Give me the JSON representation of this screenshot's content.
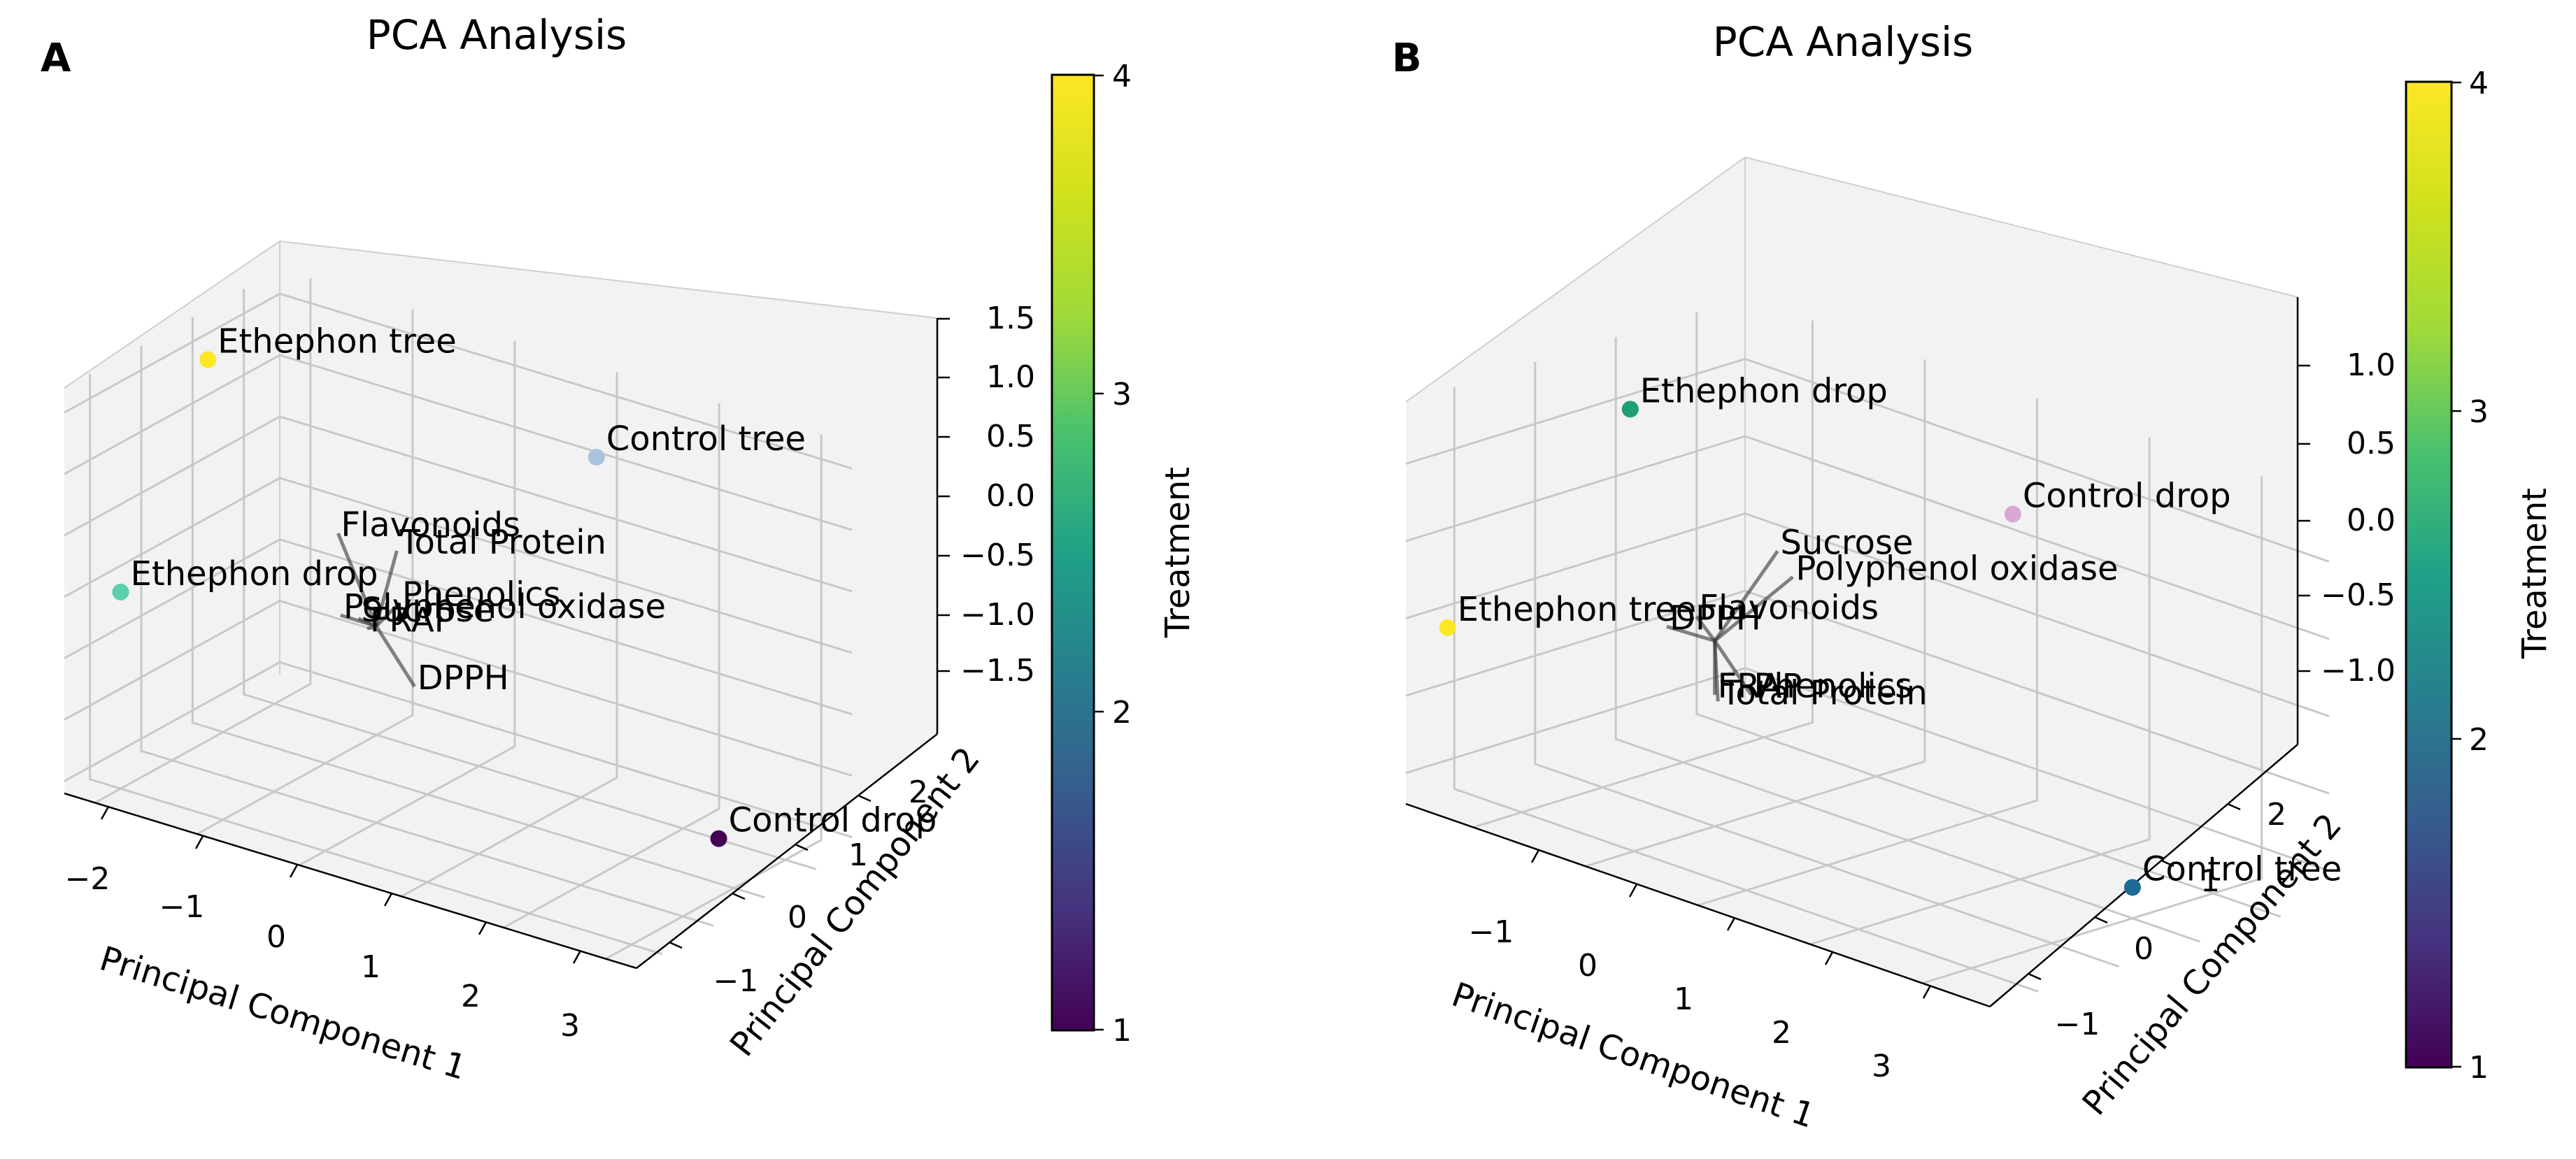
{
  "figure": {
    "panels": [
      {
        "panel_label": "A",
        "title": "PCA Analysis",
        "xlabel": "Principal Component 1",
        "ylabel": "Principal Component 2",
        "xticks": [
          "−2",
          "−1",
          "0",
          "1",
          "2",
          "3"
        ],
        "yticks": [
          "−1",
          "0",
          "1",
          "2"
        ],
        "zticks": [
          "1.5",
          "1.0",
          "0.5",
          "0.0",
          "−0.5",
          "−1.0",
          "−1.5"
        ],
        "colorbar": {
          "label": "Treatment",
          "ticks": [
            "4",
            "3",
            "2",
            "1"
          ],
          "colormap": "viridis"
        }
      },
      {
        "panel_label": "B",
        "title": "PCA Analysis",
        "xlabel": "Principal Component 1",
        "ylabel": "Principal Component 2",
        "xticks": [
          "−1",
          "0",
          "1",
          "2",
          "3"
        ],
        "yticks": [
          "−1",
          "0",
          "1",
          "2"
        ],
        "zticks": [
          "1.0",
          "0.5",
          "0.0",
          "−0.5",
          "−1.0"
        ],
        "colorbar": {
          "label": "Treatment",
          "ticks": [
            "4",
            "3",
            "2",
            "1"
          ],
          "colormap": "viridis"
        }
      }
    ]
  },
  "chart_data": [
    {
      "type": "scatter",
      "projection": "3d",
      "title": "PCA Analysis",
      "xlabel": "Principal Component 1",
      "ylabel": "Principal Component 2",
      "xlim": [
        -2.3,
        3.3
      ],
      "ylim": [
        -1.5,
        2.7
      ],
      "zlim": [
        -1.6,
        1.7
      ],
      "color_range": [
        1,
        4
      ],
      "grid": true,
      "points": [
        {
          "label": "Control tree",
          "x": 1.0,
          "y": 2.3,
          "z": 1.1,
          "treatment": 2,
          "color": "#a9c3dd"
        },
        {
          "label": "Ethephon tree",
          "x": -2.0,
          "y": 0.7,
          "z": 1.5,
          "treatment": 4,
          "color": "#fde725"
        },
        {
          "label": "Ethephon drop",
          "x": -2.0,
          "y": -1.0,
          "z": 0.0,
          "treatment": 3,
          "color": "#5ad0ad"
        },
        {
          "label": "Control drop",
          "x": 2.9,
          "y": 0.9,
          "z": -1.2,
          "treatment": 1,
          "color": "#440154"
        }
      ],
      "loadings": [
        {
          "label": "Flavonoids",
          "x": -0.6,
          "y": 0.45,
          "z": 0.5
        },
        {
          "label": "Total Protein",
          "x": -0.1,
          "y": 0.6,
          "z": 0.45
        },
        {
          "label": "Phenolics",
          "x": 0.05,
          "y": 0.35,
          "z": 0.12
        },
        {
          "label": "Polyphenol oxidase",
          "x": -0.35,
          "y": 0.0,
          "z": 0.0
        },
        {
          "label": "Sucrose",
          "x": -0.2,
          "y": 0.05,
          "z": 0.0
        },
        {
          "label": "FRAP",
          "x": -0.1,
          "y": 0.02,
          "z": -0.05
        },
        {
          "label": "DPPH",
          "x": 0.3,
          "y": 0.15,
          "z": -0.45
        }
      ]
    },
    {
      "type": "scatter",
      "projection": "3d",
      "title": "PCA Analysis",
      "xlabel": "Principal Component 1",
      "ylabel": "Principal Component 2",
      "xlim": [
        -1.6,
        3.6
      ],
      "ylim": [
        -1.6,
        2.6
      ],
      "zlim": [
        -1.2,
        1.4
      ],
      "color_range": [
        1,
        4
      ],
      "grid": true,
      "points": [
        {
          "label": "Control drop",
          "x": 1.0,
          "y": 2.3,
          "z": 0.7,
          "treatment": 1,
          "color": "#d8a8d2"
        },
        {
          "label": "Ethephon drop",
          "x": -1.4,
          "y": 0.9,
          "z": 1.0,
          "treatment": 3,
          "color": "#1fa071"
        },
        {
          "label": "Control tree",
          "x": 3.0,
          "y": 1.0,
          "z": -1.0,
          "treatment": 2,
          "color": "#1e6a96"
        },
        {
          "label": "Ethephon tree",
          "x": -1.3,
          "y": -1.5,
          "z": 0.0,
          "treatment": 4,
          "color": "#fde725"
        }
      ],
      "loadings": [
        {
          "label": "Sucrose",
          "x": 0.2,
          "y": 0.5,
          "z": 0.55
        },
        {
          "label": "Polyphenol oxidase",
          "x": 0.3,
          "y": 0.55,
          "z": 0.4
        },
        {
          "label": "Flavonoids",
          "x": -0.2,
          "y": 0.05,
          "z": 0.1
        },
        {
          "label": "DPPH",
          "x": -0.5,
          "y": 0.1,
          "z": -0.05
        },
        {
          "label": "FRAP",
          "x": 0.0,
          "y": 0.0,
          "z": -0.35
        },
        {
          "label": "Phenolics",
          "x": 0.25,
          "y": 0.1,
          "z": -0.3
        },
        {
          "label": "Total Protein",
          "x": 0.1,
          "y": -0.1,
          "z": -0.35
        }
      ]
    }
  ]
}
